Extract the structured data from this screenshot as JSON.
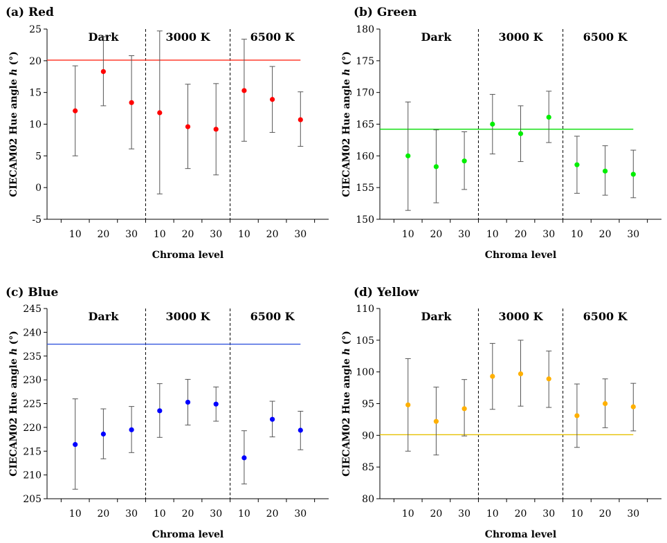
{
  "figure": {
    "chart_data": [
      {
        "type": "scatter",
        "panel_title": "(a) Red",
        "ylabel_main": "CIECAM02 Hue angle ",
        "ylabel_symbol": "h",
        "ylabel_unit": " (°)",
        "xlabel": "Chroma level",
        "ylim": [
          -5,
          25
        ],
        "yticks": [
          "-5",
          "0",
          "5",
          "10",
          "15",
          "20",
          "25"
        ],
        "groups": [
          "Dark",
          "3000 K",
          "6500 K"
        ],
        "categories": [
          "10",
          "20",
          "30",
          "10",
          "20",
          "30",
          "10",
          "20",
          "30"
        ],
        "values": [
          12.1,
          18.3,
          13.4,
          11.8,
          9.6,
          9.2,
          15.3,
          13.9,
          10.7
        ],
        "error_low": [
          5.0,
          12.9,
          6.1,
          -1.0,
          3.0,
          2.0,
          7.3,
          8.7,
          6.5
        ],
        "error_high": [
          19.2,
          23.8,
          20.8,
          24.7,
          16.3,
          16.4,
          23.4,
          19.1,
          15.1
        ],
        "reference": 20.1,
        "point_color": "#ff0000",
        "reference_color": "#ff2a1a"
      },
      {
        "type": "scatter",
        "panel_title": "(b) Green",
        "ylabel_main": "CIECAM02 Hue angle ",
        "ylabel_symbol": "h",
        "ylabel_unit": " (°)",
        "xlabel": "Chroma level",
        "ylim": [
          150,
          180
        ],
        "yticks": [
          "150",
          "155",
          "160",
          "165",
          "170",
          "175",
          "180"
        ],
        "groups": [
          "Dark",
          "3000 K",
          "6500 K"
        ],
        "categories": [
          "10",
          "20",
          "30",
          "10",
          "20",
          "30",
          "10",
          "20",
          "30"
        ],
        "values": [
          160.0,
          158.3,
          159.2,
          165.0,
          163.5,
          166.1,
          158.6,
          157.6,
          157.1
        ],
        "error_low": [
          151.4,
          152.6,
          154.7,
          160.3,
          159.1,
          162.1,
          154.1,
          153.8,
          153.4
        ],
        "error_high": [
          168.5,
          164.1,
          163.8,
          169.7,
          167.9,
          170.2,
          163.1,
          161.6,
          160.9
        ],
        "reference": 164.2,
        "point_color": "#00ee00",
        "reference_color": "#00dd00"
      },
      {
        "type": "scatter",
        "panel_title": "(c) Blue",
        "ylabel_main": "CIECAM02 Hue angle ",
        "ylabel_symbol": "h",
        "ylabel_unit": " (°)",
        "xlabel": "Chroma level",
        "ylim": [
          205,
          245
        ],
        "yticks": [
          "205",
          "210",
          "215",
          "220",
          "225",
          "230",
          "235",
          "240",
          "245"
        ],
        "groups": [
          "Dark",
          "3000 K",
          "6500 K"
        ],
        "categories": [
          "10",
          "20",
          "30",
          "10",
          "20",
          "30",
          "10",
          "20",
          "30"
        ],
        "values": [
          216.4,
          218.6,
          219.5,
          223.5,
          225.3,
          224.9,
          213.6,
          221.7,
          219.4
        ],
        "error_low": [
          207.0,
          213.4,
          214.7,
          217.9,
          220.5,
          221.3,
          208.1,
          218.0,
          215.3
        ],
        "error_high": [
          226.0,
          223.9,
          224.4,
          229.2,
          230.1,
          228.5,
          219.3,
          225.5,
          223.4
        ],
        "reference": 237.5,
        "point_color": "#0000ff",
        "reference_color": "#3355dd"
      },
      {
        "type": "scatter",
        "panel_title": "(d) Yellow",
        "ylabel_main": "CIECAM02 Hue angle ",
        "ylabel_symbol": "h",
        "ylabel_unit": " (°)",
        "xlabel": "Chroma level",
        "ylim": [
          80,
          110
        ],
        "yticks": [
          "80",
          "85",
          "90",
          "95",
          "100",
          "105",
          "110"
        ],
        "groups": [
          "Dark",
          "3000 K",
          "6500 K"
        ],
        "categories": [
          "10",
          "20",
          "30",
          "10",
          "20",
          "30",
          "10",
          "20",
          "30"
        ],
        "values": [
          94.8,
          92.2,
          94.2,
          99.3,
          99.7,
          98.9,
          93.1,
          95.0,
          94.5
        ],
        "error_low": [
          87.5,
          86.9,
          89.9,
          94.1,
          94.6,
          94.4,
          88.1,
          91.2,
          90.7
        ],
        "error_high": [
          102.1,
          97.6,
          98.8,
          104.5,
          105.0,
          103.3,
          98.1,
          98.9,
          98.2
        ],
        "reference": 90.1,
        "point_color": "#ffb000",
        "reference_color": "#e6c000"
      }
    ]
  }
}
